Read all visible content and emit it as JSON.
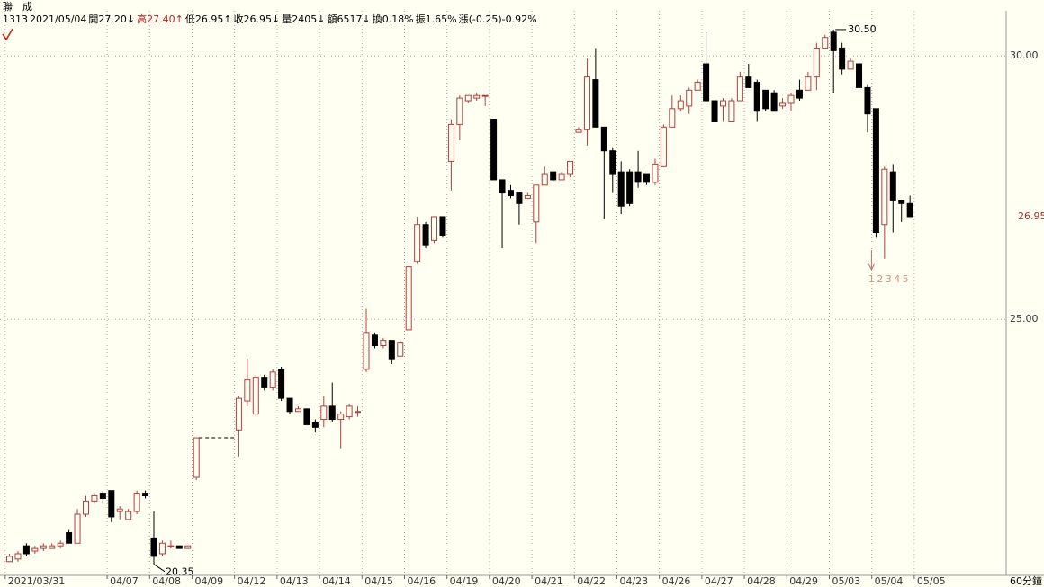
{
  "header": {
    "name": "聯　成",
    "info": [
      "1313",
      "2021/05/04",
      "開27.20↓",
      "高27.40↑",
      "低26.95↑",
      "收26.95↓",
      "量2405↓",
      "額6517↓",
      "換0.18%",
      "振1.65%",
      "漲(-0.25)-0.92%"
    ]
  },
  "chart_data": {
    "type": "candlestick",
    "categories": [
      "2021/03/31",
      null,
      null,
      null,
      null,
      null,
      null,
      null,
      null,
      null,
      null,
      null,
      "04/07",
      null,
      null,
      null,
      null,
      "04/08",
      null,
      null,
      null,
      null,
      "04/09",
      null,
      null,
      null,
      null,
      "04/12",
      null,
      null,
      null,
      null,
      "04/13",
      null,
      null,
      null,
      null,
      "04/14",
      null,
      null,
      null,
      null,
      "04/15",
      null,
      null,
      null,
      null,
      "04/16",
      null,
      null,
      null,
      null,
      "04/19",
      null,
      null,
      null,
      null,
      "04/20",
      null,
      null,
      null,
      null,
      "04/21",
      null,
      null,
      null,
      null,
      "04/22",
      null,
      null,
      null,
      null,
      "04/23",
      null,
      null,
      null,
      null,
      "04/26",
      null,
      null,
      null,
      null,
      "04/27",
      null,
      null,
      null,
      null,
      "04/28",
      null,
      null,
      null,
      null,
      "04/29",
      null,
      null,
      null,
      null,
      "05/03",
      null,
      null,
      null,
      null,
      "05/04",
      null,
      null,
      null,
      null,
      "05/05"
    ],
    "open": [
      20.4,
      20.45,
      20.7,
      20.6,
      20.65,
      20.65,
      20.7,
      20.95,
      20.75,
      21.3,
      21.55,
      21.7,
      21.75,
      21.35,
      21.2,
      21.35,
      21.7,
      20.85,
      20.55,
      20.7,
      20.7,
      20.65,
      22.0,
      null,
      null,
      null,
      null,
      22.9,
      23.45,
      23.2,
      23.9,
      23.7,
      24.05,
      23.5,
      23.25,
      23.3,
      23.05,
      23.1,
      23.35,
      23.1,
      23.15,
      23.25,
      24.05,
      24.7,
      24.5,
      24.6,
      24.3,
      24.8,
      26.1,
      26.8,
      26.5,
      26.95,
      28.0,
      28.7,
      29.15,
      29.2,
      29.25,
      28.8,
      27.65,
      27.45,
      27.4,
      27.3,
      26.85,
      27.55,
      27.8,
      27.65,
      27.75,
      28.55,
      28.6,
      29.55,
      28.65,
      28.2,
      27.8,
      27.8,
      27.8,
      27.75,
      27.6,
      27.9,
      28.65,
      29.0,
      29.05,
      29.35,
      29.85,
      29.15,
      29.05,
      28.75,
      29.15,
      29.6,
      29.5,
      29.35,
      29.3,
      29.05,
      29.1,
      29.35,
      29.35,
      29.6,
      30.15,
      30.45,
      30.15,
      29.75,
      29.85,
      29.4,
      29.0,
      26.8,
      27.8,
      27.25,
      27.2,
      null
    ],
    "high": [
      20.55,
      20.6,
      20.75,
      20.7,
      20.75,
      20.75,
      20.8,
      21.0,
      21.4,
      21.65,
      21.7,
      21.75,
      21.75,
      21.45,
      21.4,
      21.75,
      21.75,
      21.35,
      20.8,
      20.8,
      20.7,
      20.7,
      22.75,
      null,
      null,
      null,
      null,
      23.55,
      24.25,
      23.95,
      23.95,
      24.05,
      24.1,
      23.5,
      23.35,
      23.3,
      23.1,
      23.55,
      23.8,
      23.25,
      23.4,
      23.35,
      25.2,
      24.75,
      24.65,
      24.6,
      24.6,
      26.0,
      26.95,
      26.85,
      26.95,
      26.95,
      28.8,
      29.25,
      29.25,
      29.3,
      29.25,
      28.8,
      27.65,
      27.55,
      27.4,
      27.4,
      27.55,
      27.9,
      27.8,
      27.8,
      28.0,
      28.65,
      29.95,
      30.15,
      28.65,
      28.25,
      28.0,
      27.85,
      28.2,
      27.75,
      28.05,
      28.7,
      29.25,
      29.25,
      29.4,
      29.55,
      30.45,
      29.15,
      29.2,
      29.2,
      29.7,
      29.85,
      29.55,
      29.35,
      29.35,
      29.2,
      29.3,
      29.55,
      29.7,
      30.25,
      30.4,
      30.5,
      30.25,
      29.95,
      29.85,
      29.45,
      29.0,
      27.9,
      27.95,
      27.25,
      27.35,
      null
    ],
    "low": [
      20.4,
      20.4,
      20.5,
      20.55,
      20.6,
      20.65,
      20.65,
      20.75,
      20.75,
      21.25,
      21.5,
      21.5,
      21.15,
      21.2,
      21.2,
      21.3,
      21.6,
      20.35,
      20.5,
      20.65,
      20.65,
      20.65,
      21.95,
      null,
      null,
      null,
      null,
      22.4,
      23.35,
      23.2,
      23.65,
      23.65,
      23.45,
      23.2,
      23.25,
      23.0,
      22.85,
      22.95,
      23.05,
      22.55,
      23.1,
      23.15,
      24.0,
      24.45,
      24.45,
      24.15,
      24.3,
      24.8,
      26.05,
      26.35,
      26.45,
      26.55,
      27.45,
      28.4,
      29.1,
      29.15,
      29.05,
      27.65,
      26.35,
      27.3,
      26.8,
      27.3,
      26.45,
      27.55,
      27.6,
      27.65,
      27.7,
      28.55,
      28.3,
      28.65,
      26.9,
      27.4,
      27.0,
      27.15,
      27.5,
      27.55,
      27.55,
      27.9,
      28.65,
      28.95,
      28.9,
      29.35,
      29.15,
      28.75,
      28.75,
      28.75,
      29.15,
      29.4,
      28.75,
      28.95,
      28.95,
      29.0,
      28.95,
      29.15,
      29.35,
      29.35,
      30.15,
      29.3,
      29.65,
      29.75,
      29.35,
      28.55,
      26.55,
      26.15,
      26.65,
      26.85,
      26.95,
      null
    ],
    "close": [
      20.5,
      20.55,
      20.55,
      20.65,
      20.7,
      20.7,
      20.75,
      20.75,
      21.3,
      21.55,
      21.65,
      21.6,
      21.25,
      21.4,
      21.35,
      21.7,
      21.65,
      20.5,
      20.75,
      20.7,
      20.65,
      20.7,
      22.75,
      null,
      null,
      null,
      null,
      23.5,
      23.85,
      23.9,
      23.7,
      24.0,
      23.5,
      23.25,
      23.3,
      23.0,
      22.95,
      23.35,
      23.1,
      23.2,
      23.35,
      23.25,
      24.75,
      24.5,
      24.6,
      24.25,
      24.55,
      26.0,
      26.8,
      26.4,
      26.95,
      26.6,
      28.7,
      29.2,
      29.25,
      29.25,
      29.25,
      27.65,
      27.4,
      27.35,
      27.2,
      27.35,
      27.55,
      27.75,
      27.65,
      27.75,
      28.0,
      28.6,
      29.6,
      28.65,
      28.2,
      27.75,
      27.15,
      27.2,
      27.6,
      27.6,
      27.95,
      28.65,
      29.0,
      29.15,
      29.35,
      29.5,
      29.15,
      28.75,
      29.15,
      29.15,
      29.6,
      29.4,
      28.95,
      29.0,
      28.95,
      29.1,
      29.25,
      29.2,
      29.6,
      30.15,
      30.35,
      30.1,
      29.75,
      29.9,
      29.4,
      28.9,
      26.65,
      27.85,
      27.25,
      27.2,
      26.95,
      null
    ],
    "up_color": "#b83c3c",
    "down_color": "#000000",
    "ylim": [
      20.14,
      30.55
    ],
    "yticks": [
      {
        "value": 30,
        "label": "30.00"
      },
      {
        "value": 25,
        "label": "25.00"
      }
    ],
    "grid": true,
    "high_label": {
      "value": 30.5,
      "label": "30.50"
    },
    "low_label": {
      "value": 20.35,
      "label": "20.35"
    },
    "last_price": {
      "value": 26.95,
      "label": "26.95"
    },
    "count_labels": [
      "1",
      "2",
      "3",
      "4",
      "5"
    ],
    "interval": "60分鐘"
  }
}
